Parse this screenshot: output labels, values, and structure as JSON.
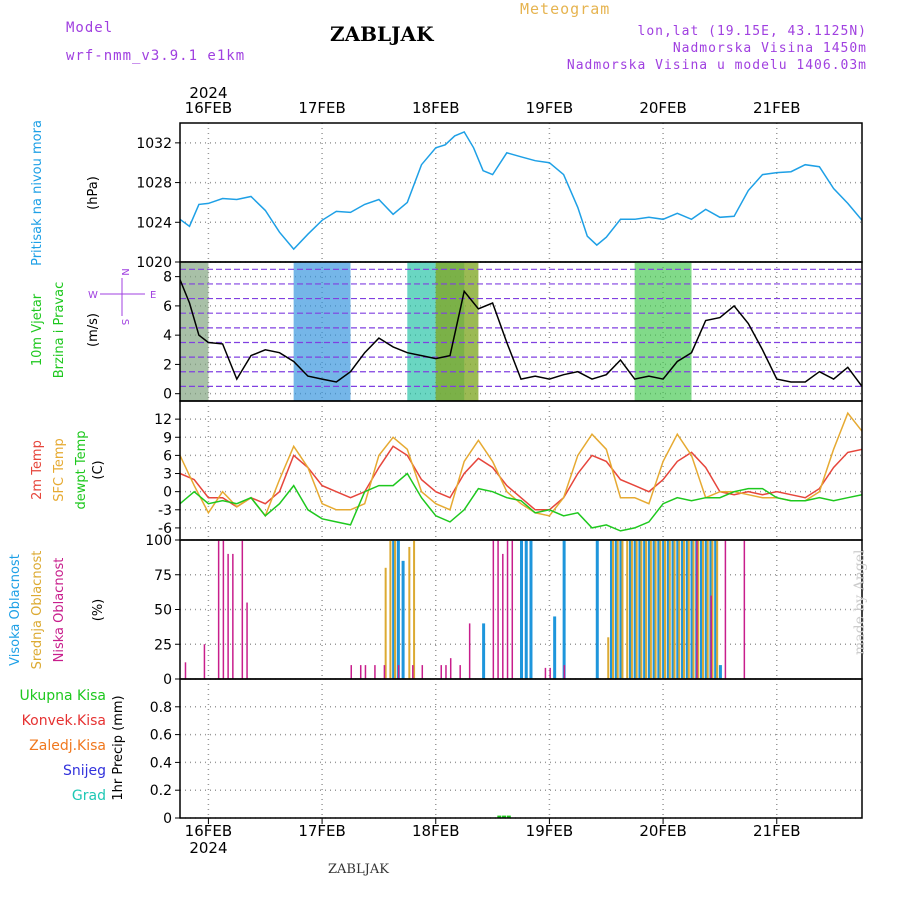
{
  "header": {
    "model_label": "Model",
    "model_name": "wrf-nmm_v3.9.1 e1km",
    "title": "ZABLJAK",
    "meteogram_label": "Meteogram",
    "location": "lon,lat (19.15E, 43.1125N)",
    "altitude": "Nadmorska Visina 1450m",
    "model_altitude": "Nadmorska Visina u modelu 1406.03m"
  },
  "footer": {
    "station": "ZABLJAK",
    "credit": "made by Angel"
  },
  "colors": {
    "pressure": "#1ea0e6",
    "temp2m": "#e6463c",
    "sfc_temp": "#e6aa32",
    "dewpoint": "#1ec81e",
    "cloud_high": "#1e96dc",
    "cloud_mid": "#dcaa32",
    "cloud_low": "#c81e8c",
    "prec_total": "#1ec81e",
    "prec_conv": "#e63232",
    "prec_frz": "#f0781e",
    "prec_snow": "#3232dc",
    "prec_grad": "#1ec8b4",
    "wind_label": "#1ec81e",
    "cloud_label_high": "#1ea0e6",
    "cloud_label_mid": "#dcaa32",
    "cloud_label_low": "#c81e8c"
  },
  "chart_data": {
    "type": "line",
    "time_axis": {
      "year": "2024",
      "ticks": [
        "16FEB",
        "17FEB",
        "18FEB",
        "19FEB",
        "20FEB",
        "21FEB"
      ],
      "range_hours": [
        -6,
        138
      ]
    },
    "panels": [
      {
        "id": "pressure",
        "ylabel": [
          "Pritisak na nivou mora",
          "(hPa)"
        ],
        "ylim": [
          1020,
          1034
        ],
        "yticks": [
          1020,
          1024,
          1028,
          1032
        ],
        "series": [
          {
            "color_key": "pressure",
            "x": [
              -6,
              -4,
              -2,
              0,
              3,
              6,
              9,
              12,
              15,
              18,
              21,
              24,
              27,
              30,
              33,
              36,
              39,
              42,
              45,
              48,
              50,
              52,
              54,
              56,
              58,
              60,
              63,
              66,
              69,
              72,
              75,
              78,
              80,
              82,
              84,
              87,
              90,
              93,
              96,
              99,
              102,
              105,
              108,
              111,
              114,
              117,
              120,
              123,
              126,
              129,
              132,
              135,
              138
            ],
            "values": [
              1024.3,
              1023.6,
              1025.8,
              1025.9,
              1026.4,
              1026.3,
              1026.6,
              1025.2,
              1023.0,
              1021.3,
              1022.8,
              1024.2,
              1025.1,
              1025.0,
              1025.8,
              1026.3,
              1024.8,
              1026.0,
              1029.8,
              1031.5,
              1031.8,
              1032.7,
              1033.1,
              1031.5,
              1029.2,
              1028.8,
              1031.0,
              1030.6,
              1030.2,
              1030.0,
              1028.8,
              1025.5,
              1022.6,
              1021.7,
              1022.5,
              1024.3,
              1024.3,
              1024.5,
              1024.3,
              1024.9,
              1024.3,
              1025.3,
              1024.5,
              1024.6,
              1027.2,
              1028.8,
              1029.0,
              1029.1,
              1029.8,
              1029.6,
              1027.4,
              1025.9,
              1024.2
            ]
          }
        ]
      },
      {
        "id": "wind",
        "ylabel": [
          "10m Vjetar",
          "Brzina i Pravac",
          "(m/s)"
        ],
        "compass": [
          "N",
          "W",
          "E",
          "S"
        ],
        "ylim": [
          -0.5,
          9
        ],
        "yticks": [
          0,
          2,
          4,
          6,
          8
        ],
        "series": [
          {
            "color": "#000000",
            "x": [
              -6,
              -4,
              -2,
              0,
              3,
              6,
              9,
              12,
              15,
              18,
              21,
              24,
              27,
              30,
              33,
              36,
              39,
              42,
              45,
              48,
              51,
              54,
              57,
              60,
              63,
              66,
              69,
              72,
              75,
              78,
              81,
              84,
              87,
              90,
              93,
              96,
              99,
              102,
              105,
              108,
              111,
              114,
              117,
              120,
              123,
              126,
              129,
              132,
              135,
              138
            ],
            "values": [
              7.8,
              6.2,
              4.0,
              3.5,
              3.4,
              1.0,
              2.6,
              3.0,
              2.8,
              2.2,
              1.2,
              1.0,
              0.8,
              1.5,
              2.8,
              3.8,
              3.2,
              2.8,
              2.6,
              2.4,
              2.6,
              7.0,
              5.8,
              6.2,
              3.5,
              1.0,
              1.2,
              1.0,
              1.3,
              1.5,
              1.0,
              1.3,
              2.3,
              1.0,
              1.2,
              1.0,
              2.2,
              2.8,
              5.0,
              5.2,
              6.0,
              4.8,
              3.0,
              1.0,
              0.8,
              0.8,
              1.5,
              1.0,
              1.8,
              0.5
            ]
          }
        ],
        "direction_bands": [
          {
            "from": -6,
            "to": 0,
            "colors": [
              "#e6a032",
              "#e65a3c",
              "#1ec8b4"
            ]
          },
          {
            "from": 18,
            "to": 30,
            "colors": [
              "#1ec8b4",
              "#1eb4e6",
              "#3c6ee6"
            ]
          },
          {
            "from": 42,
            "to": 54,
            "colors": [
              "#1ec8b4",
              "#1eb4e6",
              "#1ec878"
            ]
          },
          {
            "from": 48,
            "to": 57,
            "colors": [
              "#e6b432",
              "#e65a3c",
              "#e69632",
              "#1ec81e"
            ]
          },
          {
            "from": 90,
            "to": 102,
            "colors": [
              "#e6c832",
              "#1ec8b4",
              "#1ec81e"
            ]
          }
        ]
      },
      {
        "id": "temperature",
        "ylabel": [
          "2m Temp",
          "SFC Temp",
          "dewpt Temp",
          "(C)"
        ],
        "ylim": [
          -8,
          15
        ],
        "yticks": [
          -6,
          -3,
          0,
          3,
          6,
          9,
          12
        ],
        "series": [
          {
            "name": "2m Temp",
            "color_key": "temp2m",
            "x": [
              -6,
              -3,
              0,
              3,
              6,
              9,
              12,
              15,
              18,
              21,
              24,
              27,
              30,
              33,
              36,
              39,
              42,
              45,
              48,
              51,
              54,
              57,
              60,
              63,
              66,
              69,
              72,
              75,
              78,
              81,
              84,
              87,
              90,
              93,
              96,
              99,
              102,
              105,
              108,
              111,
              114,
              117,
              120,
              123,
              126,
              129,
              132,
              135,
              138
            ],
            "values": [
              3,
              2,
              -1,
              -1,
              -2.5,
              -1,
              -2,
              0,
              6,
              4,
              1,
              0,
              -1,
              0,
              4,
              7.5,
              6,
              2,
              0,
              -1,
              3,
              5.5,
              4,
              1,
              -1,
              -3,
              -3,
              -1,
              3,
              6,
              5,
              2,
              1,
              0,
              2,
              5,
              6.5,
              4,
              0,
              -0.5,
              0,
              -0.5,
              0,
              -0.5,
              -1,
              0.5,
              4,
              6.5,
              7
            ]
          },
          {
            "name": "SFC Temp",
            "color_key": "sfc_temp",
            "x": [
              -6,
              -3,
              0,
              3,
              6,
              9,
              12,
              15,
              18,
              21,
              24,
              27,
              30,
              33,
              36,
              39,
              42,
              45,
              48,
              51,
              54,
              57,
              60,
              63,
              66,
              69,
              72,
              75,
              78,
              81,
              84,
              87,
              90,
              93,
              96,
              99,
              102,
              105,
              108,
              111,
              114,
              117,
              120,
              123,
              126,
              129,
              132,
              135,
              138
            ],
            "values": [
              6,
              1,
              -3.5,
              0,
              -2.5,
              -1,
              -4,
              2,
              7.5,
              4,
              -2,
              -3,
              -3,
              -2,
              6,
              9,
              7,
              0,
              -2,
              -3,
              5,
              8.5,
              5,
              0,
              -2,
              -3.5,
              -4,
              -1,
              6,
              9.5,
              7,
              -1,
              -1,
              -2,
              5,
              9.5,
              6,
              -1,
              0,
              0,
              -0.5,
              -1,
              -1,
              -1.5,
              -1.5,
              0,
              7,
              13,
              10
            ]
          },
          {
            "name": "dewpt Temp",
            "color_key": "dewpoint",
            "x": [
              -6,
              -3,
              0,
              3,
              6,
              9,
              12,
              15,
              18,
              21,
              24,
              27,
              30,
              33,
              36,
              39,
              42,
              45,
              48,
              51,
              54,
              57,
              60,
              63,
              66,
              69,
              72,
              75,
              78,
              81,
              84,
              87,
              90,
              93,
              96,
              99,
              102,
              105,
              108,
              111,
              114,
              117,
              120,
              123,
              126,
              129,
              132,
              135,
              138
            ],
            "values": [
              -2,
              0,
              -2,
              -1.5,
              -2,
              -1,
              -4,
              -2,
              1,
              -3,
              -4.5,
              -5,
              -5.5,
              0,
              1,
              1,
              3,
              -1,
              -4,
              -5,
              -3,
              0.5,
              0,
              -1,
              -1.5,
              -3.5,
              -3,
              -4,
              -3.5,
              -6,
              -5.5,
              -6.5,
              -6,
              -5,
              -2,
              -1,
              -1.5,
              -1,
              -1,
              0,
              0.5,
              0.5,
              -1,
              -1.5,
              -1.5,
              -1,
              -1.5,
              -1,
              -0.5
            ]
          }
        ]
      },
      {
        "id": "clouds",
        "ylabel": [
          "Visoka Oblacnost",
          "Srednja Oblacnost",
          "Niska Oblacnost",
          "(%)"
        ],
        "ylim": [
          0,
          100
        ],
        "yticks": [
          0,
          25,
          50,
          75,
          100
        ],
        "high": [
          [
            39,
            100
          ],
          [
            40,
            100
          ],
          [
            41,
            85
          ],
          [
            58,
            40
          ],
          [
            66,
            100
          ],
          [
            67,
            100
          ],
          [
            68,
            100
          ],
          [
            73,
            45
          ],
          [
            75,
            100
          ],
          [
            82,
            100
          ],
          [
            85,
            100
          ],
          [
            86,
            100
          ],
          [
            87,
            100
          ],
          [
            89,
            100
          ],
          [
            90,
            100
          ],
          [
            91,
            100
          ],
          [
            92,
            100
          ],
          [
            93,
            100
          ],
          [
            94,
            100
          ],
          [
            95,
            100
          ],
          [
            96,
            100
          ],
          [
            97,
            100
          ],
          [
            98,
            100
          ],
          [
            99,
            100
          ],
          [
            100,
            100
          ],
          [
            101,
            100
          ],
          [
            102,
            100
          ],
          [
            103,
            100
          ],
          [
            104,
            100
          ],
          [
            105,
            100
          ],
          [
            106,
            100
          ],
          [
            107,
            100
          ],
          [
            108,
            10
          ]
        ],
        "mid": [
          [
            37,
            80
          ],
          [
            38,
            100
          ],
          [
            39,
            100
          ],
          [
            42,
            95
          ],
          [
            43,
            100
          ],
          [
            84,
            30
          ],
          [
            85,
            100
          ],
          [
            86,
            100
          ],
          [
            87,
            100
          ],
          [
            88,
            100
          ],
          [
            89,
            100
          ],
          [
            90,
            100
          ],
          [
            91,
            100
          ],
          [
            92,
            100
          ],
          [
            93,
            100
          ],
          [
            94,
            100
          ],
          [
            95,
            100
          ],
          [
            96,
            100
          ],
          [
            97,
            100
          ],
          [
            98,
            100
          ],
          [
            99,
            100
          ],
          [
            100,
            100
          ],
          [
            101,
            100
          ],
          [
            102,
            100
          ],
          [
            103,
            100
          ],
          [
            104,
            100
          ],
          [
            105,
            100
          ],
          [
            106,
            100
          ],
          [
            107,
            100
          ]
        ],
        "low": [
          [
            -5,
            12
          ],
          [
            -1,
            25
          ],
          [
            2,
            100
          ],
          [
            3,
            100
          ],
          [
            4,
            90
          ],
          [
            5,
            90
          ],
          [
            7,
            100
          ],
          [
            8,
            55
          ],
          [
            30,
            10
          ],
          [
            32,
            10
          ],
          [
            33,
            10
          ],
          [
            35,
            10
          ],
          [
            37,
            10
          ],
          [
            40,
            10
          ],
          [
            43,
            10
          ],
          [
            45,
            10
          ],
          [
            49,
            10
          ],
          [
            50,
            10
          ],
          [
            51,
            15
          ],
          [
            53,
            10
          ],
          [
            55,
            40
          ],
          [
            60,
            100
          ],
          [
            61,
            100
          ],
          [
            62,
            90
          ],
          [
            63,
            100
          ],
          [
            64,
            100
          ],
          [
            71,
            8
          ],
          [
            72,
            8
          ],
          [
            75,
            10
          ],
          [
            103,
            100
          ],
          [
            106,
            60
          ],
          [
            109,
            100
          ],
          [
            113,
            100
          ]
        ]
      },
      {
        "id": "precip",
        "ylabel": [
          "1hr Precip (mm)"
        ],
        "legend": [
          "Ukupna Kisa",
          "Konvek.Kisa",
          "Zaledj.Kisa",
          "Snijeg",
          "Grad"
        ],
        "ylim": [
          0,
          1.0
        ],
        "yticks": [
          0,
          0.2,
          0.4,
          0.6,
          0.8
        ],
        "total": [
          [
            61,
            0.01
          ],
          [
            62,
            0.01
          ],
          [
            63,
            0.01
          ]
        ]
      }
    ]
  }
}
